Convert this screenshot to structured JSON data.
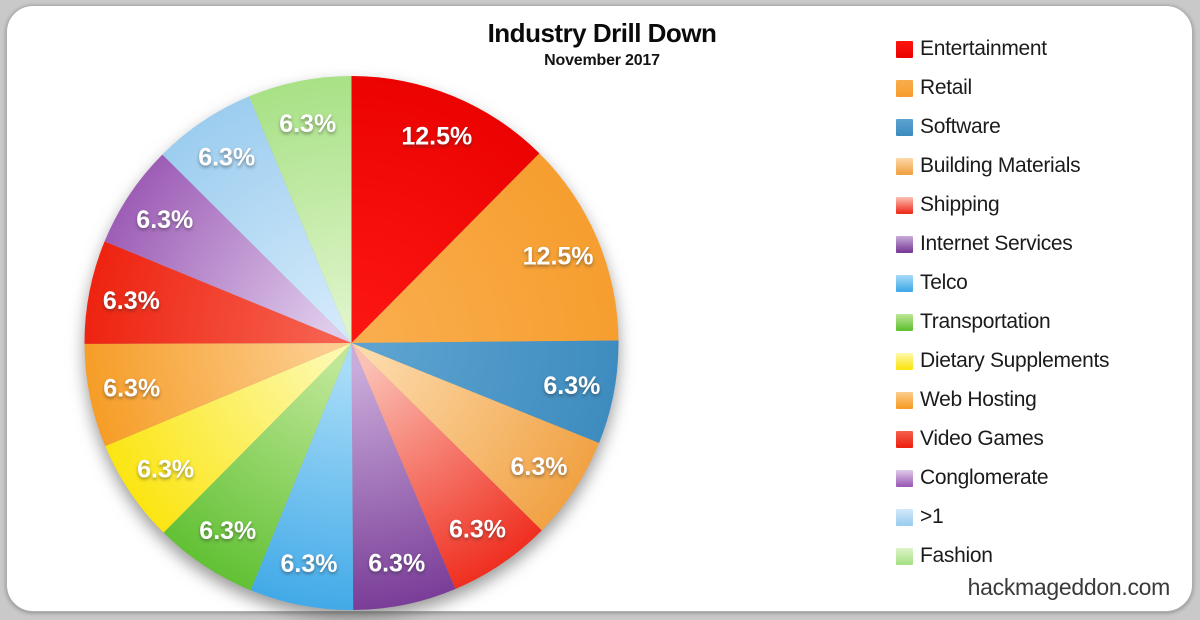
{
  "header": {
    "title": "Industry Drill Down",
    "subtitle": "November 2017"
  },
  "footer": {
    "watermark": "hackmageddon.com"
  },
  "chart_data": {
    "type": "pie",
    "title": "Industry Drill Down",
    "subtitle": "November 2017",
    "direction": "clockwise",
    "start_angle_deg": 0,
    "legend_position": "right",
    "unit": "percent",
    "slices": [
      {
        "label": "Entertainment",
        "value": 12.5,
        "display": "12.5%",
        "color": "#EC0301",
        "color_light": "#FB1511"
      },
      {
        "label": "Retail",
        "value": 12.5,
        "display": "12.5%",
        "color": "#F69E2F",
        "color_light": "#FAAD4C"
      },
      {
        "label": "Software",
        "value": 6.3,
        "display": "6.3%",
        "color": "#3E8CBF",
        "color_light": "#5CA3D0"
      },
      {
        "label": "Building Materials",
        "value": 6.3,
        "display": "6.3%",
        "color": "#F1A244",
        "color_light": "#FCD9A9"
      },
      {
        "label": "Shipping",
        "value": 6.3,
        "display": "6.3%",
        "color": "#EF2F20",
        "color_light": "#FBC0B5"
      },
      {
        "label": "Internet Services",
        "value": 6.3,
        "display": "6.3%",
        "color": "#7A3D98",
        "color_light": "#C9ABDA"
      },
      {
        "label": "Telco",
        "value": 6.3,
        "display": "6.3%",
        "color": "#42AAE8",
        "color_light": "#A8DCF8"
      },
      {
        "label": "Transportation",
        "value": 6.3,
        "display": "6.3%",
        "color": "#62C135",
        "color_light": "#BFE797"
      },
      {
        "label": "Dietary Supplements",
        "value": 6.3,
        "display": "6.3%",
        "color": "#FBE513",
        "color_light": "#FDF9AC"
      },
      {
        "label": "Web Hosting",
        "value": 6.3,
        "display": "6.3%",
        "color": "#F69D27",
        "color_light": "#FCCD8F"
      },
      {
        "label": "Video Games",
        "value": 6.3,
        "display": "6.3%",
        "color": "#EE2310",
        "color_light": "#F6604F"
      },
      {
        "label": "Conglomerate",
        "value": 6.3,
        "display": "6.3%",
        "color": "#9D5DB6",
        "color_light": "#DFCBEB"
      },
      {
        "label": ">1",
        "value": 6.3,
        "display": "6.3%",
        "color": "#9CCDEF",
        "color_light": "#D2E9FA"
      },
      {
        "label": "Fashion",
        "value": 6.3,
        "display": "6.3%",
        "color": "#A8E186",
        "color_light": "#DDF4C8"
      }
    ]
  }
}
